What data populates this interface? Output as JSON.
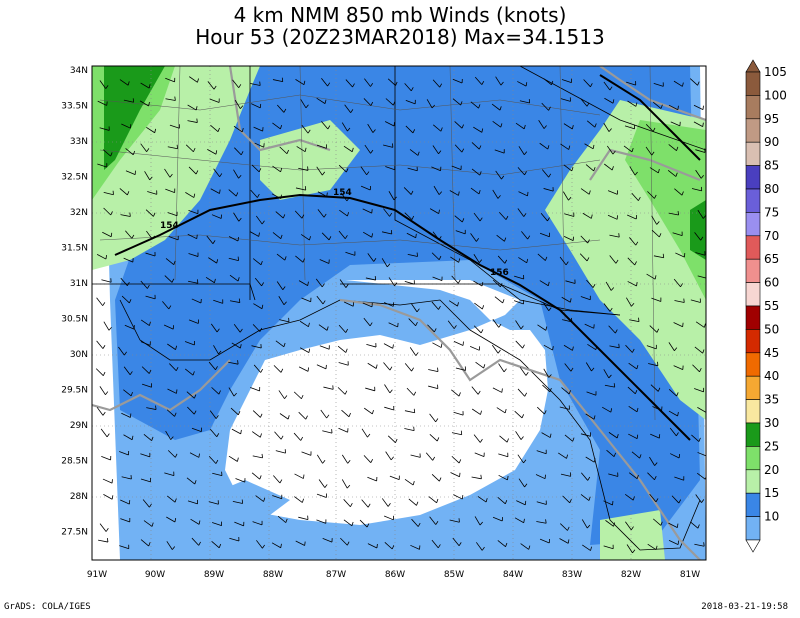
{
  "title": {
    "line1": "4 km NMM 850 mb Winds (knots)",
    "line2": "Hour 53 (20Z23MAR2018) Max=34.1513"
  },
  "footer": {
    "left": "GrADS: COLA/IGES",
    "right": "2018-03-21-19:58"
  },
  "axes": {
    "lat_labels": [
      "34N",
      "33.5N",
      "33N",
      "32.5N",
      "32N",
      "31.5N",
      "31N",
      "30.5N",
      "30N",
      "29.5N",
      "29N",
      "28.5N",
      "28N",
      "27.5N"
    ],
    "lon_labels": [
      "91W",
      "90W",
      "89W",
      "88W",
      "87W",
      "86W",
      "85W",
      "84W",
      "83W",
      "82W",
      "81W"
    ]
  },
  "colorbar": {
    "levels": [
      "105",
      "100",
      "95",
      "90",
      "85",
      "80",
      "75",
      "70",
      "65",
      "60",
      "55",
      "50",
      "45",
      "40",
      "35",
      "30",
      "25",
      "20",
      "15",
      "10"
    ],
    "colors": [
      "#8b5a3c",
      "#a87c5f",
      "#c09a84",
      "#d9bfb2",
      "#4a3fbf",
      "#6a5fd9",
      "#9a8ff0",
      "#e05a5a",
      "#f0908e",
      "#f7d6d2",
      "#a00000",
      "#d42a00",
      "#f06a00",
      "#f5a832",
      "#f9e8a0",
      "#1a9a1a",
      "#7ee06a",
      "#b8f0a8",
      "#3a86e6",
      "#72b2f4"
    ]
  },
  "map": {
    "contour_labels": [
      "154",
      "154",
      "156"
    ],
    "land_color": "#ffffff",
    "speed_colors": {
      "10": "#ffffff",
      "15": "#72b2f4",
      "20": "#3a86e6",
      "25": "#7ee06a",
      "30": "#b8f0a8",
      "35": "#1a9a1a"
    }
  }
}
